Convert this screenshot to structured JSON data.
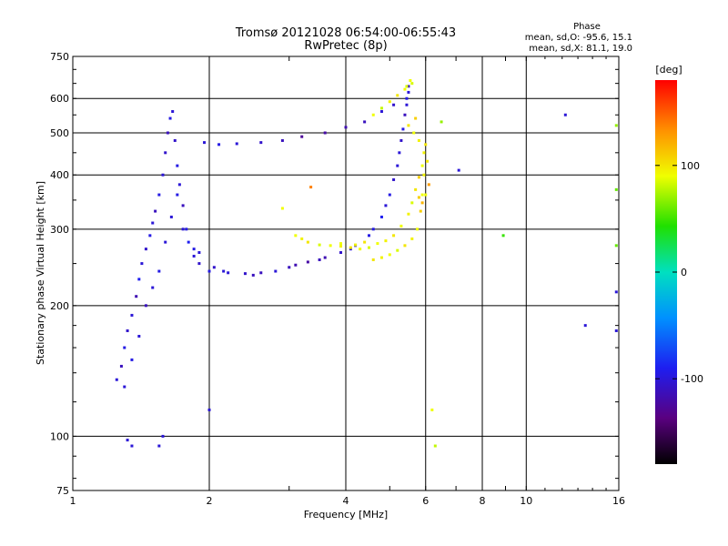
{
  "chart_data": {
    "type": "scatter",
    "title": "Tromsø 20121028 06:54:00-06:55:43",
    "subtitle": "RwPretec (8p)",
    "phase_box": {
      "header": "Phase",
      "line1": "mean, sd,O: -95.6, 15.1",
      "line2": "mean, sd,X: 81.1, 19.0"
    },
    "xlabel": "Frequency [MHz]",
    "ylabel": "Stationary phase Virtual Height [km]",
    "x_scale": "log",
    "y_scale": "log",
    "xlim": [
      1,
      16
    ],
    "ylim": [
      75,
      750
    ],
    "x_ticks": [
      1,
      2,
      4,
      6,
      8,
      10,
      16
    ],
    "x_tick_labels": [
      "1",
      "2",
      "4",
      "6",
      "8",
      "10",
      "16"
    ],
    "y_ticks": [
      75,
      100,
      200,
      300,
      400,
      500,
      600,
      750
    ],
    "y_tick_labels": [
      "75",
      "100",
      "200",
      "300",
      "400",
      "500",
      "600",
      "750"
    ],
    "x_gridlines": [
      2,
      4,
      6,
      8,
      10
    ],
    "y_gridlines": [
      100,
      200,
      300,
      400,
      500,
      600
    ],
    "grid": true,
    "colorbar": {
      "label": "[deg]",
      "range": [
        -180,
        180
      ],
      "ticks": [
        100,
        0,
        -100
      ],
      "tick_labels": [
        "100",
        "0",
        "-100"
      ]
    },
    "series": [
      {
        "description_points": [
          [
            1.25,
            135
          ],
          [
            1.28,
            145
          ],
          [
            1.3,
            160
          ],
          [
            1.32,
            175
          ],
          [
            1.35,
            190
          ],
          [
            1.38,
            210
          ],
          [
            1.4,
            230
          ],
          [
            1.42,
            250
          ],
          [
            1.45,
            270
          ],
          [
            1.48,
            290
          ],
          [
            1.5,
            310
          ],
          [
            1.52,
            330
          ],
          [
            1.55,
            360
          ],
          [
            1.58,
            400
          ],
          [
            1.6,
            450
          ],
          [
            1.62,
            500
          ],
          [
            1.64,
            540
          ],
          [
            1.66,
            560
          ],
          [
            1.68,
            480
          ],
          [
            1.7,
            420
          ],
          [
            1.72,
            380
          ],
          [
            1.75,
            340
          ],
          [
            1.78,
            300
          ],
          [
            1.8,
            280
          ],
          [
            1.85,
            260
          ],
          [
            1.9,
            250
          ],
          [
            2.0,
            240
          ],
          [
            2.2,
            238
          ],
          [
            2.4,
            237
          ],
          [
            2.6,
            238
          ],
          [
            2.8,
            240
          ],
          [
            3.0,
            245
          ],
          [
            3.3,
            252
          ],
          [
            3.6,
            258
          ],
          [
            3.9,
            265
          ],
          [
            4.2,
            275
          ],
          [
            4.5,
            290
          ],
          [
            4.8,
            320
          ],
          [
            5.0,
            360
          ],
          [
            5.2,
            420
          ],
          [
            5.3,
            480
          ],
          [
            5.4,
            550
          ],
          [
            5.5,
            620
          ],
          [
            5.45,
            600
          ],
          [
            5.1,
            580
          ],
          [
            4.8,
            560
          ],
          [
            4.4,
            530
          ],
          [
            4.0,
            515
          ],
          [
            3.6,
            500
          ],
          [
            3.2,
            490
          ],
          [
            2.9,
            480
          ],
          [
            2.6,
            475
          ],
          [
            2.3,
            472
          ],
          [
            2.1,
            470
          ],
          [
            1.95,
            475
          ],
          [
            1.35,
            95
          ],
          [
            1.32,
            98
          ],
          [
            1.55,
            95
          ],
          [
            1.58,
            100
          ],
          [
            2.0,
            115
          ],
          [
            1.3,
            130
          ],
          [
            1.35,
            150
          ],
          [
            1.4,
            170
          ],
          [
            1.45,
            200
          ],
          [
            1.5,
            220
          ],
          [
            1.55,
            240
          ],
          [
            1.6,
            280
          ],
          [
            1.65,
            320
          ],
          [
            1.7,
            360
          ],
          [
            1.75,
            300
          ],
          [
            1.85,
            270
          ],
          [
            1.9,
            265
          ],
          [
            2.05,
            245
          ],
          [
            2.15,
            240
          ],
          [
            2.5,
            235
          ],
          [
            3.1,
            248
          ],
          [
            3.5,
            255
          ],
          [
            4.1,
            270
          ],
          [
            4.6,
            300
          ],
          [
            4.9,
            340
          ],
          [
            5.1,
            390
          ],
          [
            5.25,
            450
          ],
          [
            5.35,
            510
          ],
          [
            5.45,
            580
          ],
          [
            5.5,
            640
          ],
          [
            12.2,
            550
          ],
          [
            15.8,
            520
          ],
          [
            13.5,
            180
          ],
          [
            15.8,
            175
          ],
          [
            15.8,
            215
          ],
          [
            15.8,
            275
          ],
          [
            15.8,
            370
          ],
          [
            8.9,
            290
          ],
          [
            7.1,
            410
          ],
          [
            6.5,
            530
          ],
          [
            6.3,
            95
          ],
          [
            6.2,
            115
          ],
          [
            2.9,
            335
          ],
          [
            3.35,
            375
          ]
        ],
        "phase_values": [
          -100,
          -110,
          -95,
          -105,
          -100,
          -115,
          -90,
          -100,
          -105,
          -95,
          -100,
          -110,
          -95,
          -100,
          -105,
          -110,
          -95,
          -100,
          -105,
          -95,
          -100,
          -110,
          -95,
          -90,
          -100,
          -105,
          -95,
          -100,
          -105,
          -110,
          -100,
          -110,
          -120,
          -115,
          -105,
          -100,
          -95,
          -90,
          -95,
          -100,
          -105,
          -110,
          -100,
          -95,
          -105,
          -100,
          -110,
          -115,
          -120,
          -125,
          -110,
          -105,
          -100,
          -95,
          -100,
          -100,
          -100,
          -100,
          -100,
          -100,
          -100,
          -95,
          -100,
          -110,
          -100,
          -95,
          -100,
          -100,
          -95,
          -100,
          -95,
          -100,
          -105,
          -100,
          -110,
          -115,
          -110,
          -100,
          -95,
          -100,
          -105,
          -100,
          -95,
          -100,
          -110,
          -100,
          70,
          -100,
          -100,
          -100,
          60,
          60,
          50,
          -100,
          70,
          80,
          90,
          90,
          140
        ]
      },
      {
        "description_points": [
          [
            3.1,
            290
          ],
          [
            3.2,
            285
          ],
          [
            3.3,
            280
          ],
          [
            3.5,
            276
          ],
          [
            3.7,
            275
          ],
          [
            3.9,
            274
          ],
          [
            4.1,
            272
          ],
          [
            4.3,
            270
          ],
          [
            4.5,
            272
          ],
          [
            4.7,
            278
          ],
          [
            4.9,
            282
          ],
          [
            5.1,
            290
          ],
          [
            5.3,
            305
          ],
          [
            5.5,
            325
          ],
          [
            5.6,
            345
          ],
          [
            5.7,
            370
          ],
          [
            5.8,
            395
          ],
          [
            5.9,
            420
          ],
          [
            5.95,
            450
          ],
          [
            6.0,
            470
          ],
          [
            5.75,
            300
          ],
          [
            5.6,
            285
          ],
          [
            5.4,
            275
          ],
          [
            5.2,
            268
          ],
          [
            5.0,
            262
          ],
          [
            4.8,
            258
          ],
          [
            4.6,
            255
          ],
          [
            5.85,
            330
          ],
          [
            5.9,
            360
          ],
          [
            5.95,
            400
          ],
          [
            4.8,
            570
          ],
          [
            5.0,
            590
          ],
          [
            5.2,
            610
          ],
          [
            5.4,
            630
          ],
          [
            5.6,
            650
          ],
          [
            4.6,
            550
          ],
          [
            5.5,
            520
          ],
          [
            5.7,
            540
          ],
          [
            5.65,
            500
          ],
          [
            5.8,
            480
          ],
          [
            6.05,
            430
          ],
          [
            6.1,
            380
          ],
          [
            6.0,
            360
          ],
          [
            5.9,
            345
          ],
          [
            5.8,
            355
          ],
          [
            3.9,
            278
          ],
          [
            4.2,
            276
          ],
          [
            4.4,
            280
          ],
          [
            5.45,
            640
          ],
          [
            5.55,
            660
          ]
        ],
        "phase_values": [
          90,
          95,
          100,
          85,
          90,
          95,
          100,
          90,
          85,
          90,
          95,
          100,
          90,
          95,
          85,
          100,
          110,
          90,
          95,
          100,
          90,
          95,
          100,
          85,
          90,
          95,
          100,
          110,
          90,
          95,
          80,
          95,
          100,
          90,
          85,
          90,
          100,
          110,
          90,
          95,
          100,
          130,
          90,
          120,
          110,
          90,
          95,
          100,
          85,
          90
        ]
      }
    ]
  }
}
